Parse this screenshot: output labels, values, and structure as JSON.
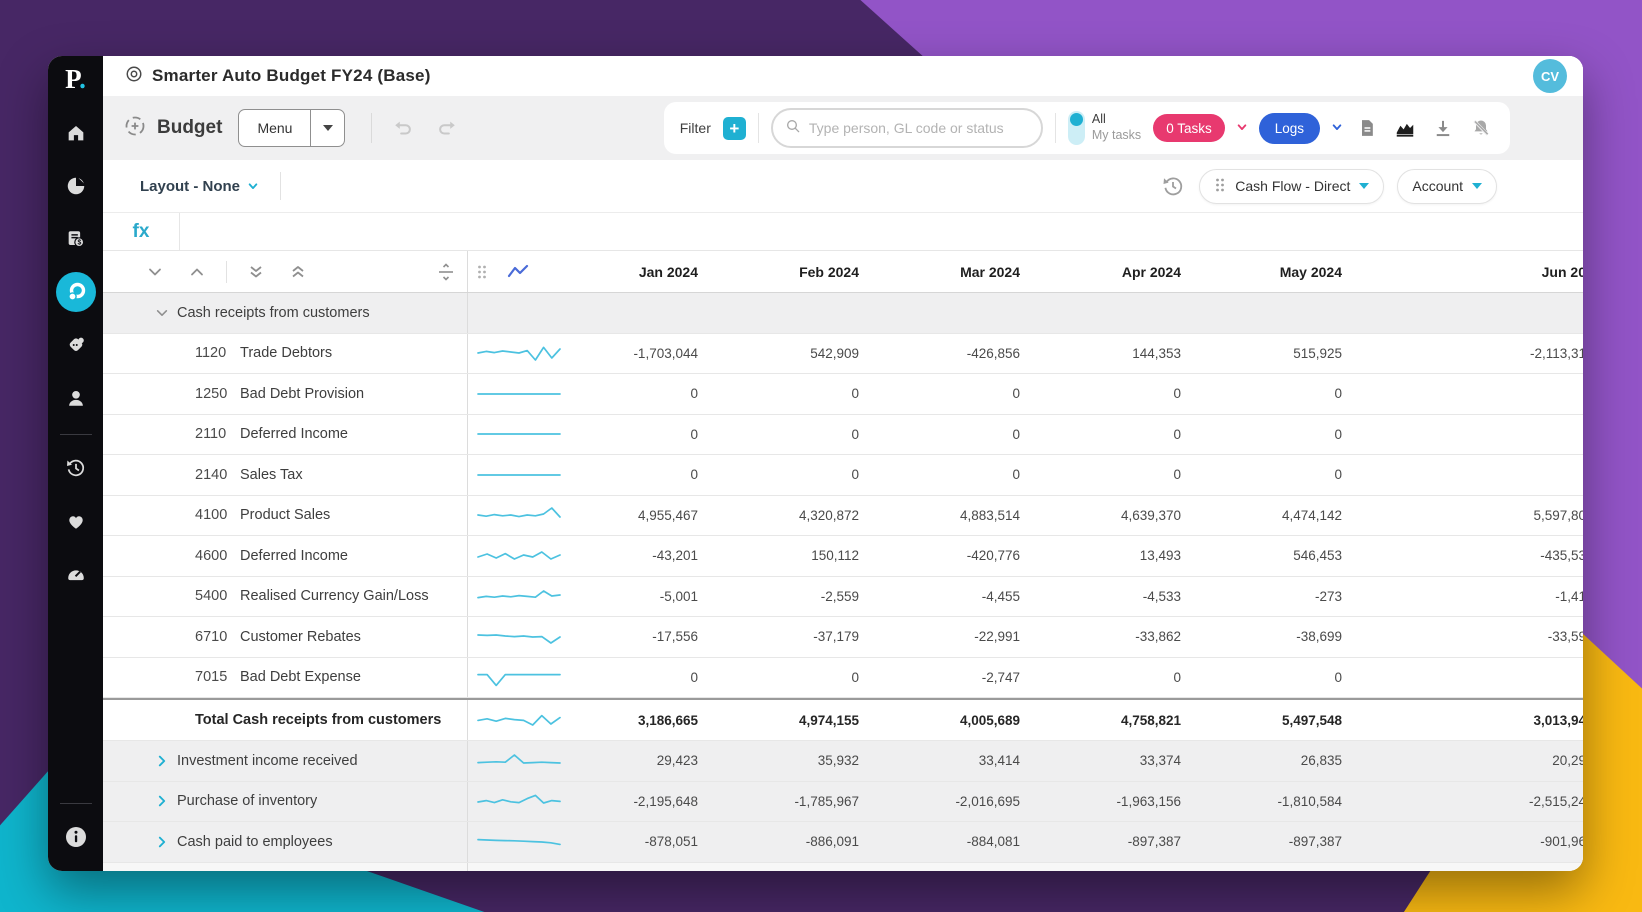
{
  "colors": {
    "accent_cyan": "#1fb0d2",
    "sparkline": "#4cc2e0",
    "tasks_pink": "#e8396f",
    "logs_blue": "#2f62d9",
    "bg_dark_purple": "#472765",
    "bg_light_purple": "#9254c7",
    "bg_cyan": "#0fb5cd",
    "bg_yellow": "#f9b912",
    "sidebar_black": "#0c0c10"
  },
  "sidebar": {
    "logo_text": "P",
    "logo_dot": ".",
    "items": [
      {
        "icon": "home-icon"
      },
      {
        "icon": "pie-chart-icon"
      },
      {
        "icon": "financial-report-icon"
      },
      {
        "icon": "plan-icon",
        "active": true
      },
      {
        "icon": "tag-icon"
      },
      {
        "icon": "user-icon"
      },
      {
        "icon": "history-icon"
      },
      {
        "icon": "heart-icon"
      },
      {
        "icon": "gauge-icon"
      },
      {
        "icon": "info-icon"
      }
    ]
  },
  "titlebar": {
    "title": "Smarter Auto Budget FY24 (Base)",
    "avatar_initials": "CV"
  },
  "toolbar": {
    "view_label": "Budget",
    "menu_label": "Menu",
    "filter_label": "Filter",
    "search_placeholder": "Type person, GL code or status",
    "toggle_on_label": "All",
    "toggle_off_label": "My tasks",
    "tasks_label": "0 Tasks",
    "logs_label": "Logs",
    "icons": [
      "document-icon",
      "area-chart-icon",
      "download-icon",
      "bell-off-icon"
    ]
  },
  "subtoolbar": {
    "layout_label": "Layout - None",
    "view_pill_label": "Cash Flow - Direct",
    "axis_pill_label": "Account"
  },
  "formula_bar": {
    "label": "fx"
  },
  "table": {
    "columns": [
      "Jan 2024",
      "Feb 2024",
      "Mar 2024",
      "Apr 2024",
      "May 2024",
      "Jun 20"
    ],
    "rows": [
      {
        "type": "group-open",
        "label": "Cash receipts from customers"
      },
      {
        "type": "detail",
        "code": "1120",
        "label": "Trade Debtors",
        "values": [
          "-1,703,044",
          "542,909",
          "-426,856",
          "144,353",
          "515,925",
          "-2,113,31"
        ],
        "spark": [
          0.5,
          0.58,
          0.52,
          0.6,
          0.55,
          0.5,
          0.62,
          0.15,
          0.78,
          0.25,
          0.7
        ]
      },
      {
        "type": "detail",
        "code": "1250",
        "label": "Bad Debt Provision",
        "values": [
          "0",
          "0",
          "0",
          "0",
          "0",
          ""
        ],
        "spark": [
          0.5,
          0.5
        ]
      },
      {
        "type": "detail",
        "code": "2110",
        "label": "Deferred Income",
        "values": [
          "0",
          "0",
          "0",
          "0",
          "0",
          ""
        ],
        "spark": [
          0.5,
          0.5
        ]
      },
      {
        "type": "detail",
        "code": "2140",
        "label": "Sales Tax",
        "values": [
          "0",
          "0",
          "0",
          "0",
          "0",
          ""
        ],
        "spark": [
          0.5,
          0.5
        ]
      },
      {
        "type": "detail",
        "code": "4100",
        "label": "Product Sales",
        "values": [
          "4,955,467",
          "4,320,872",
          "4,883,514",
          "4,639,370",
          "4,474,142",
          "5,597,80"
        ],
        "spark": [
          0.5,
          0.44,
          0.52,
          0.46,
          0.5,
          0.42,
          0.5,
          0.46,
          0.55,
          0.85,
          0.4
        ]
      },
      {
        "type": "detail",
        "code": "4600",
        "label": "Deferred Income",
        "values": [
          "-43,201",
          "150,112",
          "-420,776",
          "13,493",
          "546,453",
          "-435,53"
        ],
        "spark": [
          0.45,
          0.6,
          0.4,
          0.62,
          0.35,
          0.55,
          0.45,
          0.7,
          0.35,
          0.55
        ]
      },
      {
        "type": "detail",
        "code": "5400",
        "label": "Realised Currency Gain/Loss",
        "values": [
          "-5,001",
          "-2,559",
          "-4,455",
          "-4,533",
          "-273",
          "-1,41"
        ],
        "spark": [
          0.42,
          0.48,
          0.44,
          0.5,
          0.46,
          0.52,
          0.48,
          0.44,
          0.75,
          0.5,
          0.55
        ]
      },
      {
        "type": "detail",
        "code": "6710",
        "label": "Customer Rebates",
        "values": [
          "-17,556",
          "-37,179",
          "-22,991",
          "-33,862",
          "-38,699",
          "-33,59"
        ],
        "spark": [
          0.6,
          0.58,
          0.6,
          0.55,
          0.52,
          0.55,
          0.5,
          0.52,
          0.2,
          0.5
        ]
      },
      {
        "type": "detail",
        "code": "7015",
        "label": "Bad Debt Expense",
        "values": [
          "0",
          "0",
          "-2,747",
          "0",
          "0",
          ""
        ],
        "spark": [
          0.62,
          0.62,
          0.08,
          0.62,
          0.62,
          0.62,
          0.62,
          0.62,
          0.62,
          0.62
        ]
      },
      {
        "type": "total",
        "label": "Total Cash receipts from customers",
        "values": [
          "3,186,665",
          "4,974,155",
          "4,005,689",
          "4,758,821",
          "5,497,548",
          "3,013,94"
        ],
        "spark": [
          0.48,
          0.56,
          0.44,
          0.58,
          0.52,
          0.48,
          0.25,
          0.72,
          0.3,
          0.62
        ]
      },
      {
        "type": "group-closed",
        "label": "Investment income received",
        "values": [
          "29,423",
          "35,932",
          "33,414",
          "33,374",
          "26,835",
          "20,29"
        ],
        "spark": [
          0.42,
          0.44,
          0.46,
          0.44,
          0.8,
          0.4,
          0.42,
          0.44,
          0.42,
          0.4
        ]
      },
      {
        "type": "group-closed",
        "label": "Purchase of inventory",
        "values": [
          "-2,195,648",
          "-1,785,967",
          "-2,016,695",
          "-1,963,156",
          "-1,810,584",
          "-2,515,24"
        ],
        "spark": [
          0.45,
          0.52,
          0.42,
          0.56,
          0.46,
          0.42,
          0.62,
          0.78,
          0.4,
          0.52,
          0.48
        ]
      },
      {
        "type": "group-closed",
        "label": "Cash paid to employees",
        "values": [
          "-878,051",
          "-886,091",
          "-884,081",
          "-897,387",
          "-897,387",
          "-901,96"
        ],
        "spark": [
          0.62,
          0.6,
          0.58,
          0.57,
          0.56,
          0.54,
          0.52,
          0.5,
          0.46,
          0.38
        ]
      },
      {
        "type": "partial"
      }
    ]
  }
}
